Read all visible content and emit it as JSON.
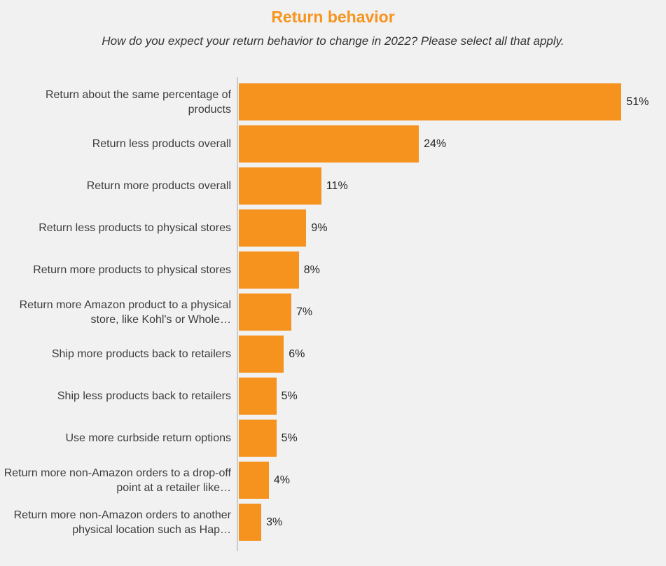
{
  "title": "Return behavior",
  "subtitle": "How do you expect your return behavior to change in 2022? Please select all that apply.",
  "colors": {
    "background": "#F1F1F1",
    "bar": "#F6921E",
    "title": "#F7941E",
    "axis_line": "#CCCCCC",
    "category_text": "#3D3D3D",
    "value_text": "#262626"
  },
  "chart_data": {
    "type": "bar",
    "orientation": "horizontal",
    "title": "Return behavior",
    "subtitle": "How do you expect your return behavior to change in 2022? Please select all that apply.",
    "categories": [
      "Return about the same percentage of products",
      "Return less products overall",
      "Return more products overall",
      "Return less products to physical stores",
      "Return more products to physical stores",
      "Return more Amazon product to a physical store, like Kohl's or Whole…",
      "Ship more products back to retailers",
      "Ship less products back to retailers",
      "Use more curbside return options",
      "Return more non-Amazon orders to a drop-off point at a retailer like…",
      "Return more non-Amazon orders to another physical location such as Hap…"
    ],
    "values": [
      51,
      24,
      11,
      9,
      8,
      7,
      6,
      5,
      5,
      4,
      3
    ],
    "value_labels": [
      "51%",
      "24%",
      "11%",
      "9%",
      "8%",
      "7%",
      "6%",
      "5%",
      "5%",
      "4%",
      "3%"
    ],
    "xlabel": "",
    "ylabel": "",
    "xlim": [
      0,
      56
    ],
    "grid": false,
    "legend_position": "none"
  }
}
